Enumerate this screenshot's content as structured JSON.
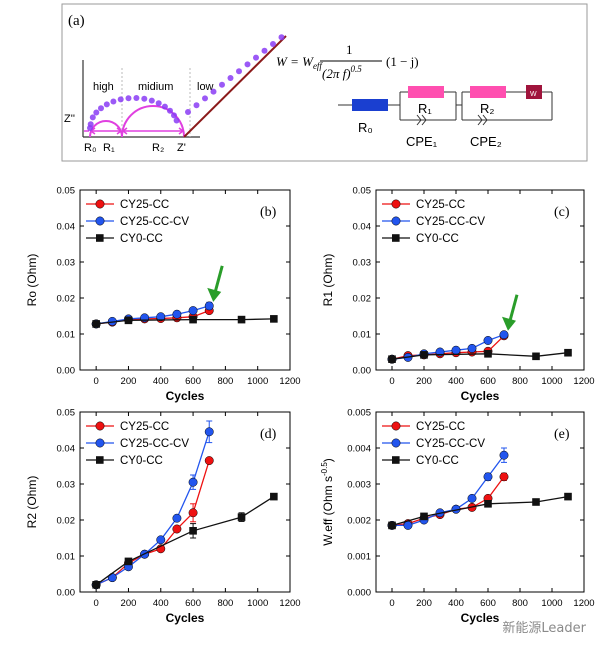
{
  "panel_a": {
    "label": "(a)",
    "region_labels": [
      "high",
      "midium",
      "low"
    ],
    "axis_labels": {
      "y": "Z''",
      "x": "Z'"
    },
    "resistances": [
      "R₀",
      "R₁",
      "R₂"
    ],
    "equation": {
      "lhs": "W = W",
      "sub": "eff",
      "numerator": "1",
      "den_base": "(2π f)",
      "den_exp": "0.5",
      "tail": "(1 − j)"
    },
    "circuit": {
      "r0": "R₀",
      "r1": "R₁",
      "r2": "R₂",
      "cpe1": "CPE₁",
      "cpe2": "CPE₂",
      "w": "W"
    },
    "colors": {
      "nyquist": "#8a3cf5",
      "arc": "#e040e0",
      "line": "#8b1a1a",
      "r0_box": "#1a3fd0",
      "cpe_box": "#ff4fb0",
      "w_box": "#a0143c"
    }
  },
  "chart_data": [
    {
      "type": "line",
      "panel": "(b)",
      "ylabel": "Ro (Ohm)",
      "xlabel": "Cycles",
      "xlim": [
        -100,
        1200
      ],
      "ylim": [
        0,
        0.05
      ],
      "xticks": [
        "0",
        "200",
        "400",
        "600",
        "800",
        "1000",
        "1200"
      ],
      "yticks": [
        "0.00",
        "0.01",
        "0.02",
        "0.03",
        "0.04",
        "0.05"
      ],
      "legend": "top-left",
      "series": [
        {
          "name": "CY25-CC",
          "x": [
            0,
            100,
            200,
            300,
            400,
            500,
            600,
            700
          ],
          "y": [
            0.0128,
            0.0133,
            0.014,
            0.0142,
            0.0143,
            0.0145,
            0.0148,
            0.0165
          ]
        },
        {
          "name": "CY25-CC-CV",
          "x": [
            0,
            100,
            200,
            300,
            400,
            500,
            600,
            700
          ],
          "y": [
            0.0128,
            0.0135,
            0.0142,
            0.0145,
            0.0148,
            0.0155,
            0.0165,
            0.0178
          ],
          "yerr": [
            0,
            0,
            0,
            0,
            0,
            0,
            0,
            0.001
          ]
        },
        {
          "name": "CY0-CC",
          "x": [
            0,
            200,
            600,
            900,
            1100
          ],
          "y": [
            0.0128,
            0.0138,
            0.014,
            0.014,
            0.0142
          ]
        }
      ],
      "arrow_at": [
        700,
        0.0178
      ]
    },
    {
      "type": "line",
      "panel": "(c)",
      "ylabel": "R1 (Ohm)",
      "xlabel": "Cycles",
      "xlim": [
        -100,
        1200
      ],
      "ylim": [
        0,
        0.05
      ],
      "xticks": [
        "0",
        "200",
        "400",
        "600",
        "800",
        "1000",
        "1200"
      ],
      "yticks": [
        "0.00",
        "0.01",
        "0.02",
        "0.03",
        "0.04",
        "0.05"
      ],
      "legend": "top-left",
      "series": [
        {
          "name": "CY25-CC",
          "x": [
            0,
            100,
            200,
            300,
            400,
            500,
            600,
            700
          ],
          "y": [
            0.003,
            0.004,
            0.0042,
            0.0045,
            0.0048,
            0.005,
            0.0052,
            0.0095
          ]
        },
        {
          "name": "CY25-CC-CV",
          "x": [
            0,
            100,
            200,
            300,
            400,
            500,
            600,
            700
          ],
          "y": [
            0.003,
            0.0035,
            0.0045,
            0.005,
            0.0055,
            0.006,
            0.0082,
            0.0098
          ]
        },
        {
          "name": "CY0-CC",
          "x": [
            0,
            200,
            600,
            900,
            1100
          ],
          "y": [
            0.003,
            0.0042,
            0.0045,
            0.0038,
            0.0048
          ]
        }
      ],
      "arrow_at": [
        700,
        0.0098
      ]
    },
    {
      "type": "line",
      "panel": "(d)",
      "ylabel": "R2 (Ohm)",
      "xlabel": "Cycles",
      "xlim": [
        -100,
        1200
      ],
      "ylim": [
        0,
        0.05
      ],
      "xticks": [
        "0",
        "200",
        "400",
        "600",
        "800",
        "1000",
        "1200"
      ],
      "yticks": [
        "0.00",
        "0.01",
        "0.02",
        "0.03",
        "0.04",
        "0.05"
      ],
      "legend": "top-left",
      "series": [
        {
          "name": "CY25-CC",
          "x": [
            0,
            100,
            200,
            300,
            400,
            500,
            600,
            700
          ],
          "y": [
            0.002,
            0.004,
            0.008,
            0.0105,
            0.012,
            0.0175,
            0.022,
            0.0365
          ],
          "yerr": [
            0,
            0,
            0,
            0,
            0,
            0,
            0.0025,
            0
          ]
        },
        {
          "name": "CY25-CC-CV",
          "x": [
            0,
            100,
            200,
            300,
            400,
            500,
            600,
            700
          ],
          "y": [
            0.002,
            0.004,
            0.007,
            0.0105,
            0.0145,
            0.0205,
            0.0305,
            0.0445
          ],
          "yerr": [
            0,
            0,
            0,
            0,
            0,
            0,
            0.002,
            0.003
          ]
        },
        {
          "name": "CY0-CC",
          "x": [
            0,
            200,
            600,
            900,
            1100
          ],
          "y": [
            0.002,
            0.0085,
            0.017,
            0.0208,
            0.0265
          ],
          "yerr": [
            0,
            0,
            0.002,
            0.0012,
            0
          ]
        }
      ]
    },
    {
      "type": "line",
      "panel": "(e)",
      "ylabel": "W.eff (Ohm s",
      "ylabel_sup": "-0.5",
      "ylabel_close": ")",
      "xlabel": "Cycles",
      "xlim": [
        -100,
        1200
      ],
      "ylim": [
        0,
        0.005
      ],
      "xticks": [
        "0",
        "200",
        "400",
        "600",
        "800",
        "1000",
        "1200"
      ],
      "yticks": [
        "0.000",
        "0.001",
        "0.002",
        "0.003",
        "0.004",
        "0.005"
      ],
      "legend": "top-left",
      "series": [
        {
          "name": "CY25-CC",
          "x": [
            0,
            100,
            200,
            300,
            400,
            500,
            600,
            700
          ],
          "y": [
            0.00185,
            0.0019,
            0.00205,
            0.00215,
            0.0023,
            0.00235,
            0.0026,
            0.0032
          ],
          "yerr": [
            0,
            0,
            0,
            0,
            0,
            0,
            0,
            0.0001
          ]
        },
        {
          "name": "CY25-CC-CV",
          "x": [
            0,
            100,
            200,
            300,
            400,
            500,
            600,
            700
          ],
          "y": [
            0.00185,
            0.00185,
            0.002,
            0.0022,
            0.0023,
            0.0026,
            0.0032,
            0.0038
          ],
          "yerr": [
            0,
            0,
            0,
            0,
            0,
            0,
            0.0001,
            0.0002
          ]
        },
        {
          "name": "CY0-CC",
          "x": [
            0,
            200,
            600,
            900,
            1100
          ],
          "y": [
            0.00185,
            0.0021,
            0.00245,
            0.0025,
            0.00265
          ]
        }
      ]
    }
  ],
  "series_colors": {
    "CY25-CC": "#ee1111",
    "CY25-CC-CV": "#2255ee",
    "CY0-CC": "#111111"
  },
  "watermark": "新能源Leader"
}
